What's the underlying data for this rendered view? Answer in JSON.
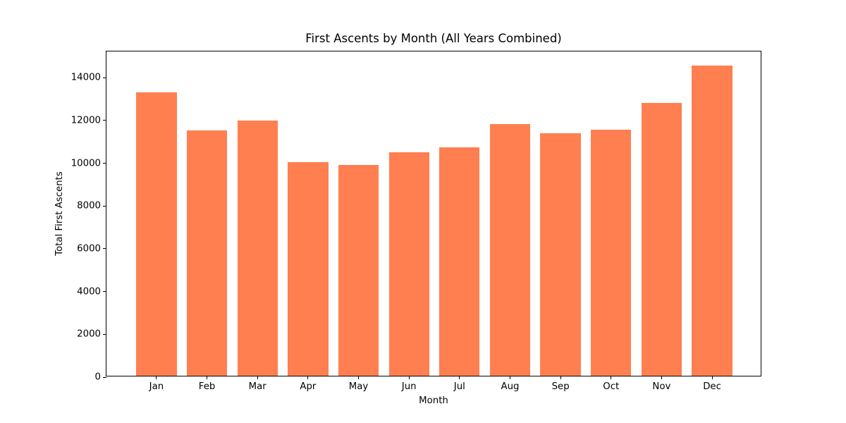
{
  "chart_data": {
    "type": "bar",
    "title": "First Ascents by Month (All Years Combined)",
    "xlabel": "Month",
    "ylabel": "Total First Ascents",
    "categories": [
      "Jan",
      "Feb",
      "Mar",
      "Apr",
      "May",
      "Jun",
      "Jul",
      "Aug",
      "Sep",
      "Oct",
      "Nov",
      "Dec"
    ],
    "values": [
      13250,
      11470,
      11930,
      9980,
      9850,
      10460,
      10690,
      11770,
      11340,
      11500,
      12760,
      14500
    ],
    "bar_color": "#FF7F50",
    "background_color": "#FFFFFF",
    "axes_color": "#000000",
    "ylim": [
      0,
      15225
    ],
    "yticks": [
      0,
      2000,
      4000,
      6000,
      8000,
      10000,
      12000,
      14000
    ],
    "bar_width_fraction": 0.8,
    "grid": false,
    "legend": false
  }
}
